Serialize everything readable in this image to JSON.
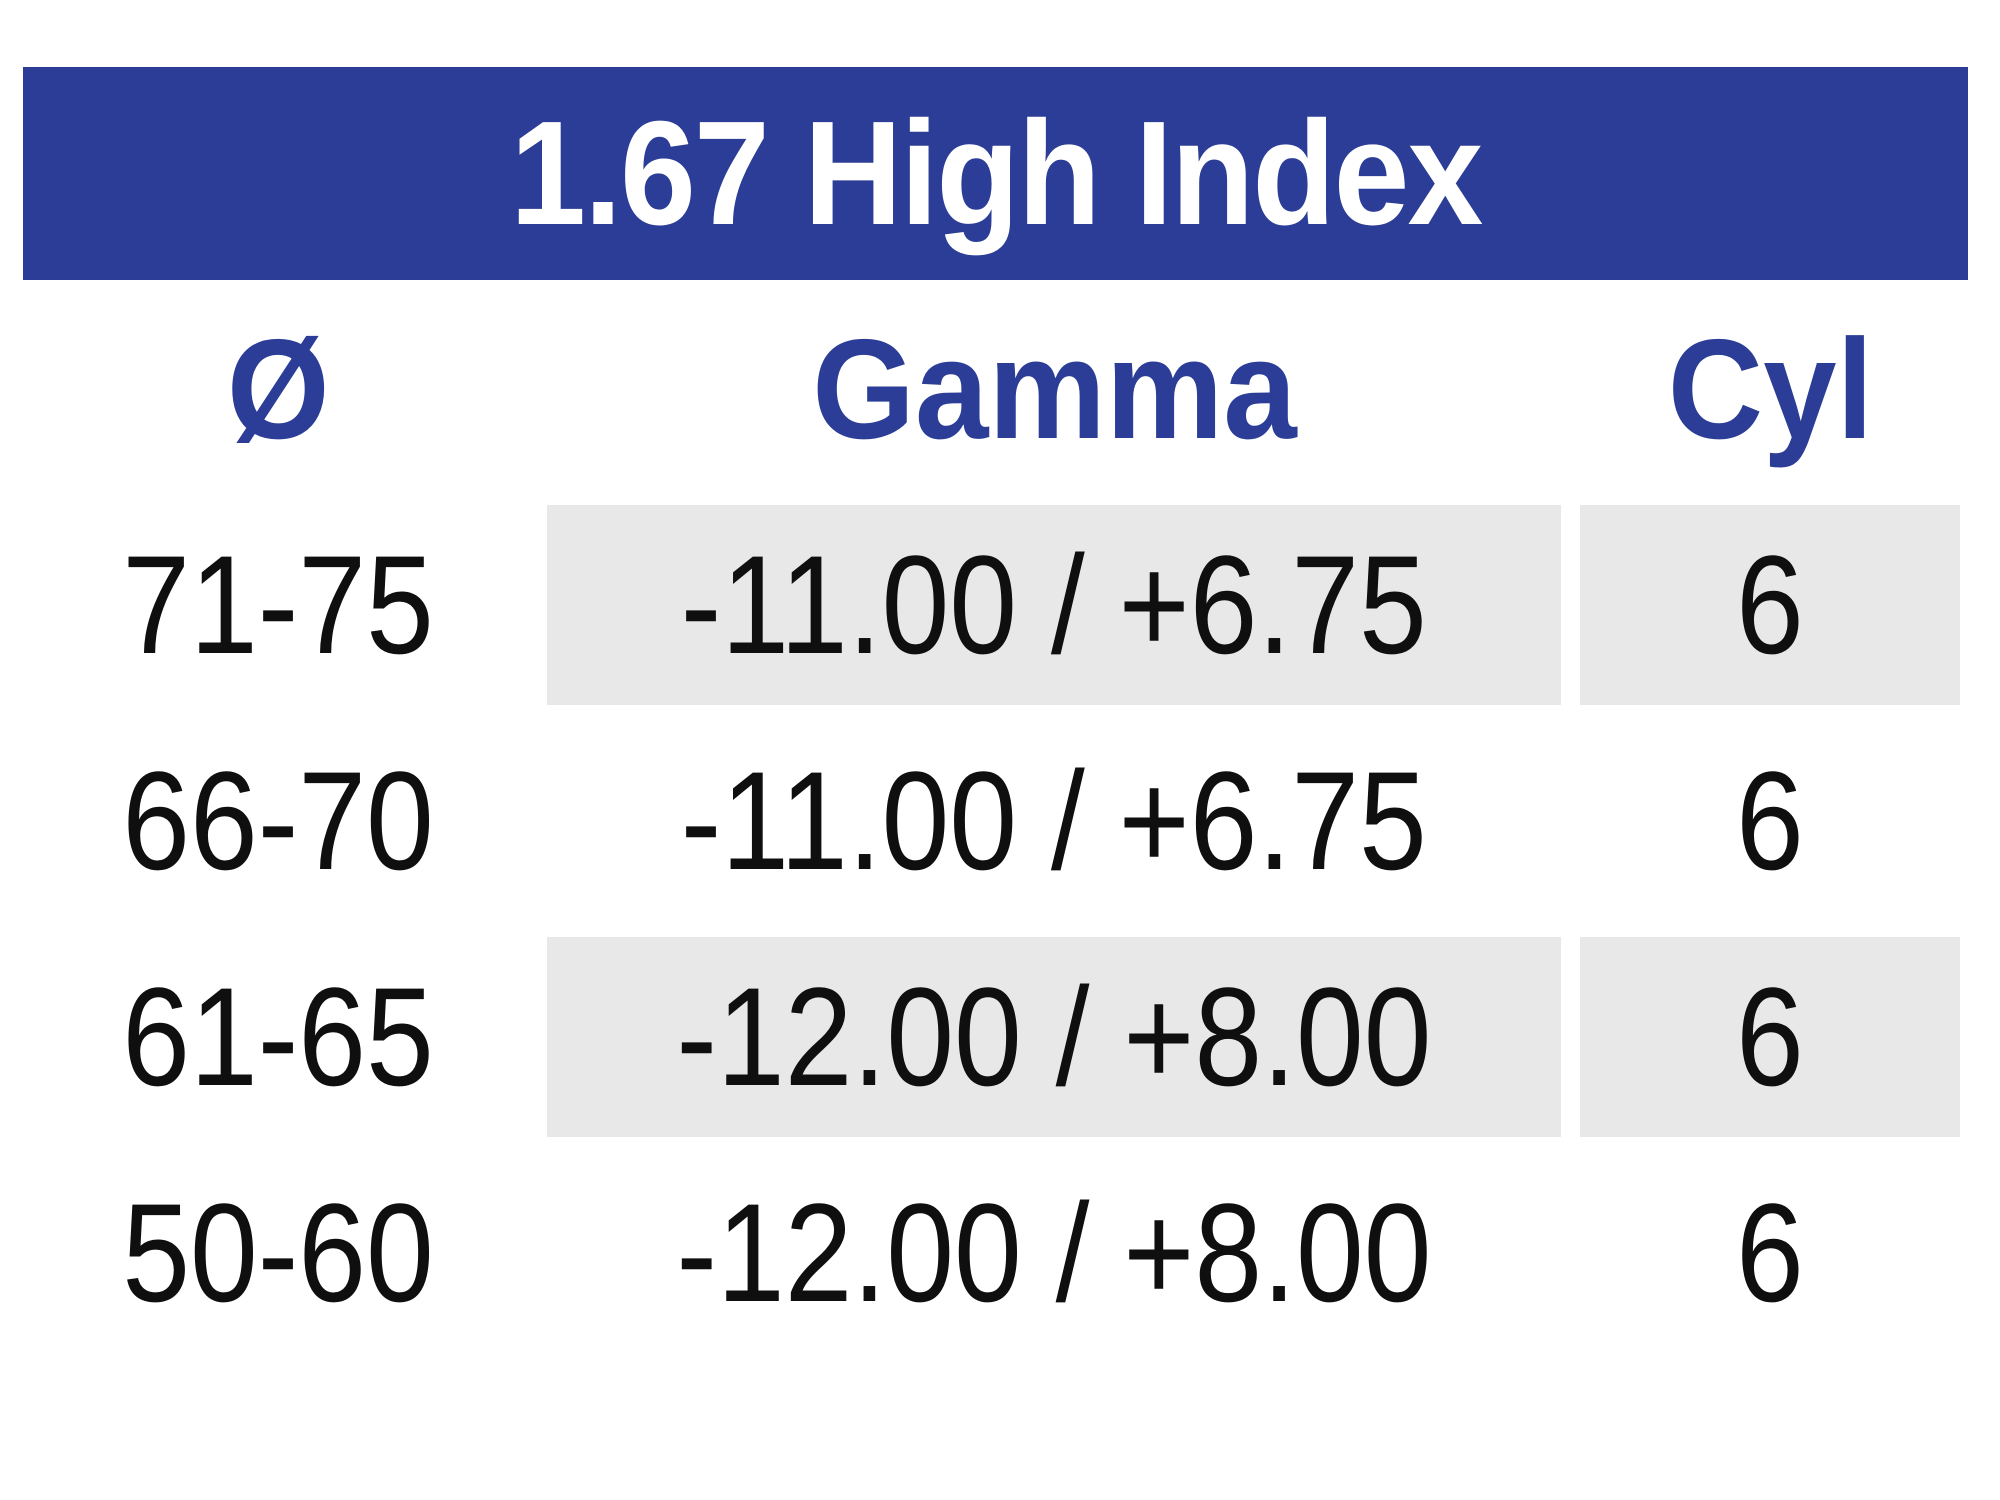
{
  "header": {
    "title": "1.67 High Index"
  },
  "table": {
    "columns": [
      {
        "key": "diameter",
        "label": "Ø"
      },
      {
        "key": "gamma",
        "label": "Gamma"
      },
      {
        "key": "cyl",
        "label": "Cyl"
      }
    ],
    "rows": [
      {
        "diameter": "71-75",
        "gamma": "-11.00 / +6.75",
        "cyl": "6",
        "shaded": true
      },
      {
        "diameter": "66-70",
        "gamma": "-11.00 / +6.75",
        "cyl": "6",
        "shaded": false
      },
      {
        "diameter": "61-65",
        "gamma": "-12.00 / +8.00",
        "cyl": "6",
        "shaded": true
      },
      {
        "diameter": "50-60",
        "gamma": "-12.00 / +8.00",
        "cyl": "6",
        "shaded": false
      }
    ]
  },
  "colors": {
    "title_bar_background": "#2b3d96",
    "title_text": "#ffffff",
    "column_header_text": "#2b3d96",
    "row_shade": "#e8e8e8",
    "data_text": "#0f0f0f",
    "page_background": "#ffffff"
  }
}
